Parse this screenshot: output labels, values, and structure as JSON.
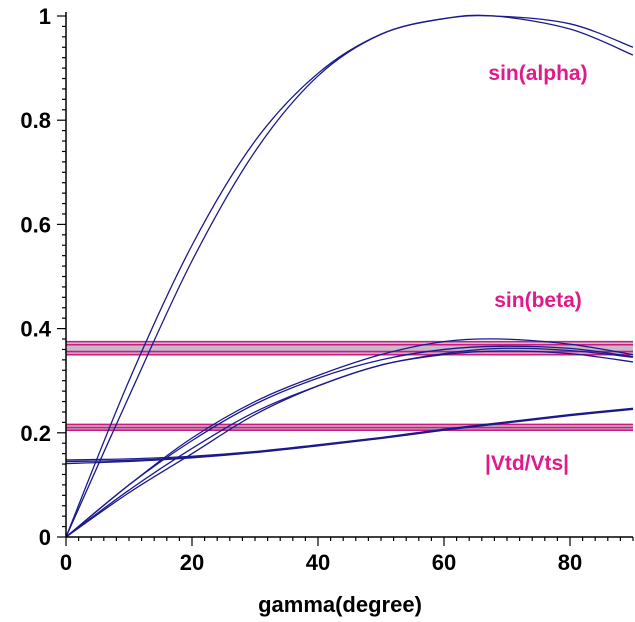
{
  "chart_data": {
    "type": "line",
    "title": "",
    "xlabel": "gamma(degree)",
    "ylabel": "",
    "xlim": [
      0,
      90
    ],
    "ylim": [
      0,
      1
    ],
    "grid": false,
    "x_ticks": [
      0,
      20,
      40,
      60,
      80
    ],
    "x_tick_labels": [
      "0",
      "20",
      "40",
      "60",
      "80"
    ],
    "y_ticks": [
      0,
      0.2,
      0.4,
      0.6,
      0.8,
      1
    ],
    "y_tick_labels": [
      "0",
      "0.2",
      "0.4",
      "0.6",
      "0.8",
      "1"
    ],
    "annotations": [
      "sin(alpha)",
      "sin(beta)",
      "|Vtd/Vts|"
    ],
    "colors": {
      "curve": "#1a1a8c",
      "band_line": "#cc1a80",
      "band_fill": "#c9b8c9",
      "annotation": "#e0198c",
      "axis": "#000000"
    },
    "bands": [
      {
        "y_low": 0.35,
        "y_high": 0.375,
        "lines": [
          0.35,
          0.356,
          0.369,
          0.375
        ]
      },
      {
        "y_low": 0.205,
        "y_high": 0.216,
        "lines": [
          0.205,
          0.21,
          0.216
        ]
      }
    ],
    "series": [
      {
        "x": [
          0,
          10,
          20,
          30,
          40,
          50,
          60,
          68,
          80,
          90
        ],
        "y": [
          0,
          0.3,
          0.56,
          0.76,
          0.89,
          0.965,
          0.995,
          1.0,
          0.985,
          0.94
        ]
      },
      {
        "x": [
          0,
          10,
          20,
          30,
          40,
          50,
          60,
          68,
          80,
          90
        ],
        "y": [
          0,
          0.27,
          0.53,
          0.74,
          0.885,
          0.965,
          0.995,
          1.0,
          0.975,
          0.925
        ]
      },
      {
        "x": [
          0,
          10,
          20,
          30,
          40,
          50,
          60,
          69,
          80,
          90
        ],
        "y": [
          0,
          0.1,
          0.19,
          0.26,
          0.31,
          0.35,
          0.375,
          0.38,
          0.37,
          0.35
        ]
      },
      {
        "x": [
          0,
          10,
          20,
          30,
          40,
          50,
          60,
          69,
          80,
          90
        ],
        "y": [
          0,
          0.1,
          0.185,
          0.255,
          0.305,
          0.34,
          0.36,
          0.366,
          0.362,
          0.346
        ]
      },
      {
        "x": [
          0,
          10,
          20,
          30,
          40,
          50,
          60,
          69,
          80,
          90
        ],
        "y": [
          0,
          0.09,
          0.17,
          0.24,
          0.29,
          0.33,
          0.35,
          0.357,
          0.352,
          0.336
        ]
      },
      {
        "x": [
          0,
          10,
          20,
          30,
          40,
          50,
          60,
          69,
          80,
          90
        ],
        "y": [
          0,
          0.085,
          0.16,
          0.235,
          0.29,
          0.33,
          0.352,
          0.362,
          0.358,
          0.345
        ]
      },
      {
        "x": [
          0,
          10,
          20,
          30,
          40,
          50,
          60,
          70,
          80,
          90
        ],
        "y": [
          0.145,
          0.147,
          0.153,
          0.163,
          0.176,
          0.19,
          0.206,
          0.22,
          0.234,
          0.246
        ]
      },
      {
        "x": [
          0,
          10,
          20,
          30,
          40,
          50,
          60,
          70,
          80,
          90
        ],
        "y": [
          0.141,
          0.145,
          0.152,
          0.162,
          0.175,
          0.189,
          0.205,
          0.219,
          0.233,
          0.245
        ]
      },
      {
        "x": [
          0,
          10,
          20,
          30,
          40,
          50,
          60,
          70,
          80,
          90
        ],
        "y": [
          0.148,
          0.15,
          0.155,
          0.164,
          0.177,
          0.191,
          0.207,
          0.221,
          0.235,
          0.247
        ]
      }
    ]
  }
}
